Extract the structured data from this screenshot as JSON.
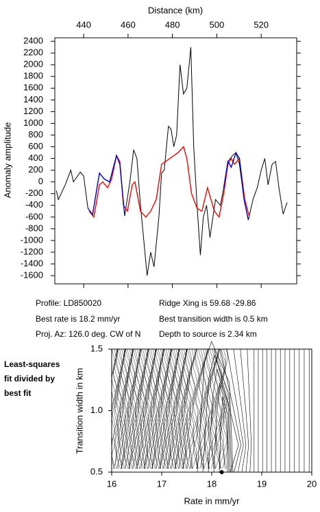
{
  "chart_data": [
    {
      "type": "line",
      "x_label": "Distance (km)",
      "y_label": "Anomaly amplitude",
      "xlim": [
        427,
        536
      ],
      "xticks": [
        440,
        460,
        480,
        500,
        520
      ],
      "ylim": [
        -1740,
        2460
      ],
      "yticks": [
        -1600,
        -1400,
        -1200,
        -1000,
        -800,
        -600,
        -400,
        -200,
        0,
        200,
        400,
        600,
        800,
        1000,
        1200,
        1400,
        1600,
        1800,
        2000,
        2200,
        2400
      ],
      "series": [
        {
          "color": "#000000",
          "x": [
            427.7,
            428.6,
            431.7,
            434.2,
            435.4,
            438.5,
            440.0,
            441.9,
            444.0,
            447.1,
            449.3,
            451.7,
            454.8,
            456.3,
            458.5,
            461.0,
            462.5,
            464.0,
            465.6,
            468.6,
            470.2,
            471.7,
            473.9,
            475.1,
            476.3,
            478.2,
            479.4,
            480.6,
            481.9,
            483.4,
            485.0,
            486.5,
            488.3,
            489.6,
            491.1,
            492.6,
            493.9,
            495.4,
            496.9,
            499.4,
            501.6,
            503.1,
            505.0,
            507.1,
            508.6,
            510.2,
            512.3,
            514.2,
            516.3,
            518.2,
            520.0,
            521.6,
            523.1,
            524.9,
            526.5,
            528.0,
            529.9,
            531.7
          ],
          "values": [
            -150,
            -300,
            -50,
            200,
            0,
            170,
            100,
            -450,
            -560,
            150,
            50,
            0,
            450,
            300,
            -580,
            50,
            550,
            400,
            -400,
            -1600,
            -1200,
            -1450,
            -600,
            150,
            200,
            950,
            900,
            600,
            800,
            2000,
            1500,
            1600,
            2300,
            600,
            -400,
            -1250,
            -600,
            -400,
            -950,
            -300,
            -400,
            -100,
            350,
            450,
            500,
            300,
            -300,
            -650,
            -300,
            -100,
            200,
            400,
            -50,
            300,
            350,
            -100,
            -550,
            -350
          ]
        },
        {
          "color": "#ff0000",
          "x": [
            442.5,
            444.6,
            447.1,
            448.6,
            450.8,
            452.6,
            454.8,
            456.3,
            457.9,
            459.7,
            461.9,
            463.1,
            465.6,
            468.0,
            470.2,
            472.7,
            475.1,
            478.8,
            482.5,
            485.0,
            486.5,
            488.6,
            491.1,
            493.3,
            495.8,
            498.9,
            501.0,
            503.1,
            505.0,
            506.5,
            508.0,
            510.2,
            512.6,
            514.7
          ],
          "values": [
            -500,
            -600,
            -50,
            0,
            -100,
            50,
            450,
            350,
            -400,
            -500,
            -50,
            0,
            -500,
            -600,
            -500,
            -300,
            300,
            400,
            500,
            600,
            400,
            -200,
            -450,
            -500,
            -100,
            -500,
            -600,
            -200,
            300,
            400,
            300,
            400,
            -300,
            -600
          ]
        },
        {
          "color": "#0000cc",
          "x": [
            441.9,
            444.0,
            447.1,
            449.3,
            451.7,
            454.8,
            456.3,
            458.5,
            null,
            503.1,
            505.0,
            506.5,
            508.6,
            510.2,
            512.3,
            514.2
          ],
          "values": [
            -450,
            -560,
            150,
            50,
            0,
            450,
            300,
            -580,
            null,
            -100,
            350,
            250,
            500,
            400,
            -300,
            -650
          ]
        }
      ],
      "annotations": [
        "Profile: LD850020",
        "Best rate is 18.2 mm/yr",
        "Proj. Az: 126.0 deg. CW of N",
        "Ridge Xing is 59.68 -29.86",
        "Best transition width is 0.5 km",
        "Depth to source is   2.34 km"
      ]
    },
    {
      "type": "contour",
      "x_label": "Rate in mm/yr",
      "y_label": "Transition width in km",
      "xlim": [
        16,
        20
      ],
      "xticks": [
        16,
        17,
        18,
        19,
        20
      ],
      "ylim": [
        0.5,
        1.5
      ],
      "yticks": [
        0.5,
        {
          "value": 1,
          "label": "1.0"
        },
        1.5
      ],
      "best_point": {
        "x": 18.2,
        "y": 0.5
      },
      "annotation": [
        "Least-squares",
        "fit divided by",
        "best fit"
      ]
    }
  ]
}
